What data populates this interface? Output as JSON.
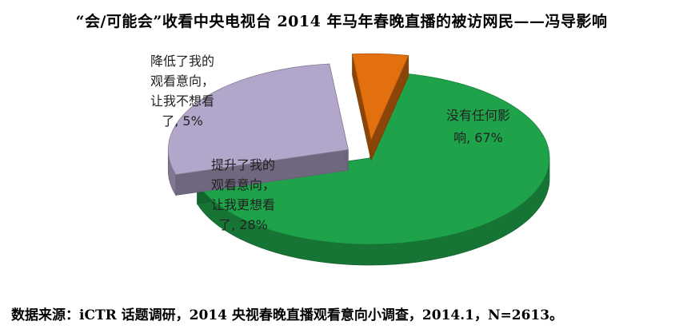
{
  "chart_data": {
    "type": "pie",
    "title": "“会/可能会”收看中央电视台 2014 年马年春晚直播的被访网民——冯导影响",
    "legend": "none",
    "slices": [
      {
        "label": "没有任何影响",
        "value": 67,
        "value_text": "67%",
        "label_lines": [
          "没有任何影",
          "响, 67%"
        ],
        "color": "#1fa34a",
        "exploded": false
      },
      {
        "label": "提升了我的观看意向，让我更想看了",
        "value": 28,
        "value_text": "28%",
        "label_lines": [
          "提升了我的",
          "观看意向，",
          "让我更想看",
          "了, 28%"
        ],
        "color": "#b3a6cb",
        "exploded": true
      },
      {
        "label": "降低了我的观看意向，让我不想看了",
        "value": 5,
        "value_text": "5%",
        "label_lines": [
          "降低了我的",
          "观看意向，",
          "让我不想看",
          "了, 5%"
        ],
        "color": "#e2700e",
        "exploded": true
      }
    ]
  },
  "source": "数据来源：iCTR 话题调研，2014 央视春晚直播观看意向小调查，2014.1，N=2613。"
}
